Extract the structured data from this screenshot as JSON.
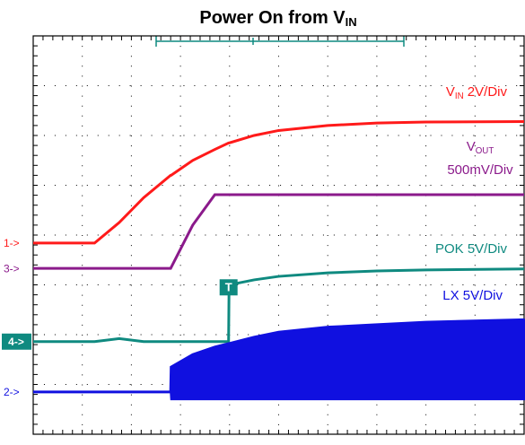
{
  "chart_data": {
    "type": "line",
    "title": [
      {
        "text": "Power On from V"
      },
      {
        "text": "IN",
        "sub": true
      }
    ],
    "trigger_label": "T",
    "x": [
      0,
      1,
      1.25,
      1.75,
      2.25,
      2.8,
      2.81,
      3.25,
      3.7,
      3.98,
      3.99,
      4.5,
      5,
      6,
      7,
      8,
      10
    ],
    "xlim": [
      0,
      10
    ],
    "ylim": [
      0,
      8
    ],
    "xticks": [
      0,
      1,
      2,
      3,
      4,
      5,
      6,
      7,
      8,
      9,
      10
    ],
    "yticks": [
      0,
      1,
      2,
      3,
      4,
      5,
      6,
      7,
      8
    ],
    "grid": true,
    "series": [
      {
        "name": "VIN",
        "color": "#ff1a1a",
        "marker": "1->",
        "label": [
          [
            {
              "text": "V"
            },
            {
              "text": "IN",
              "sub": true
            },
            {
              "text": " 2V/Div"
            }
          ]
        ],
        "values": [
          3.84,
          3.84,
          3.84,
          4.25,
          4.75,
          5.2,
          5.2,
          5.5,
          5.72,
          5.85,
          5.85,
          6.0,
          6.1,
          6.2,
          6.25,
          6.27,
          6.28
        ]
      },
      {
        "name": "VOUT",
        "color": "#8b1a8b",
        "marker": "3->",
        "label": [
          [
            {
              "text": "V"
            },
            {
              "text": "OUT",
              "sub": true
            }
          ],
          [
            {
              "text": "500mV/Div"
            }
          ]
        ],
        "values": [
          3.33,
          3.33,
          3.33,
          3.33,
          3.33,
          3.33,
          3.35,
          4.2,
          4.81,
          4.81,
          4.81,
          4.81,
          4.81,
          4.81,
          4.81,
          4.81,
          4.81
        ]
      },
      {
        "name": "POK",
        "color": "#0f8a80",
        "marker": "4->",
        "boxed": true,
        "label": [
          [
            {
              "text": "POK 5V/Div"
            }
          ]
        ],
        "values": [
          1.86,
          1.86,
          1.86,
          1.92,
          1.86,
          1.86,
          1.86,
          1.86,
          1.86,
          1.86,
          3.0,
          3.1,
          3.17,
          3.24,
          3.28,
          3.3,
          3.32
        ]
      },
      {
        "name": "LX",
        "color": "#1010e0",
        "marker": "2->",
        "label": [
          [
            {
              "text": "LX 5V/Div"
            }
          ]
        ],
        "values": [
          0.85,
          0.85,
          0.85,
          0.85,
          0.85,
          0.85,
          1.35,
          1.6,
          1.75,
          1.82,
          1.82,
          1.95,
          2.05,
          2.15,
          2.2,
          2.25,
          2.3
        ],
        "lower": [
          0.85,
          0.85,
          0.85,
          0.85,
          0.85,
          0.85,
          0.7,
          0.7,
          0.7,
          0.7,
          0.7,
          0.7,
          0.7,
          0.7,
          0.7,
          0.7,
          0.7
        ]
      }
    ]
  }
}
